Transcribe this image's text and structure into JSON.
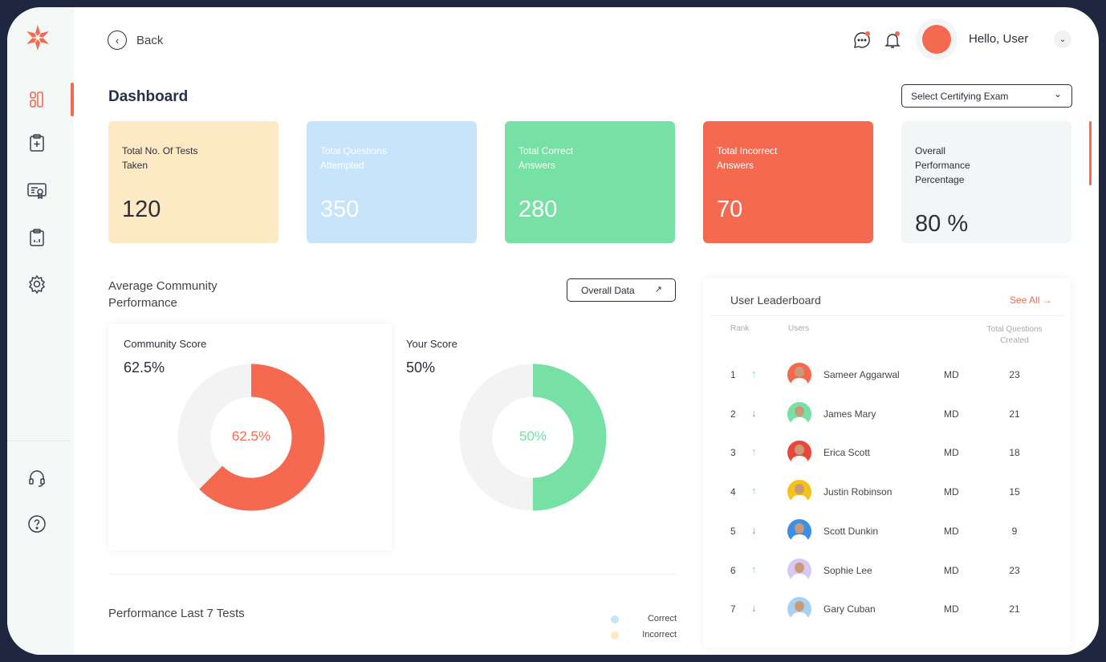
{
  "header": {
    "back_label": "Back",
    "greeting": "Hello, User"
  },
  "page": {
    "title": "Dashboard",
    "exam_select": "Select Certifying Exam"
  },
  "stats": [
    {
      "label": "Total No. Of Tests Taken",
      "value": "120",
      "bg": "#fde9c4",
      "fg": "#2b2f3a"
    },
    {
      "label": "Total Questions Attempted",
      "value": "350",
      "bg": "#c7e4fb",
      "fg": "#ffffff"
    },
    {
      "label": "Total Correct Answers",
      "value": "280",
      "bg": "#77e0a4",
      "fg": "#ffffff"
    },
    {
      "label": "Total Incorrect Answers",
      "value": "70",
      "bg": "#f4694f",
      "fg": "#ffffff"
    },
    {
      "label": "Overall Performance Percentage",
      "value": "80 %",
      "bg": "#f3f6f6",
      "fg": "#2b2f3a"
    }
  ],
  "community": {
    "title": "Average Community Performance",
    "overall_button": "Overall Data",
    "community_score": {
      "label": "Community Score",
      "value": "62.5%",
      "fraction": 0.625,
      "color": "#f4694f"
    },
    "your_score": {
      "label": "Your Score",
      "value": "50%",
      "fraction": 0.5,
      "color": "#77e0a4"
    }
  },
  "performance": {
    "title": "Performance Last 7 Tests",
    "legend": [
      {
        "label": "Correct",
        "color": "#c7e4fb"
      },
      {
        "label": "Incorrect",
        "color": "#fde9c4"
      }
    ]
  },
  "leaderboard": {
    "title": "User Leaderboard",
    "see_all": "See All",
    "headers": {
      "rank": "Rank",
      "users": "Users",
      "total": "Total Questions Created"
    },
    "rows": [
      {
        "rank": "1",
        "trend": "up",
        "name": "Sameer Aggarwal",
        "degree": "MD",
        "total": "23",
        "avatar": "#f4694f"
      },
      {
        "rank": "2",
        "trend": "down",
        "name": "James Mary",
        "degree": "MD",
        "total": "21",
        "avatar": "#77e0a4"
      },
      {
        "rank": "3",
        "trend": "up",
        "name": "Erica Scott",
        "degree": "MD",
        "total": "18",
        "avatar": "#e8473b"
      },
      {
        "rank": "4",
        "trend": "up",
        "name": "Justin Robinson",
        "degree": "MD",
        "total": "15",
        "avatar": "#f5c21b"
      },
      {
        "rank": "5",
        "trend": "down",
        "name": "Scott Dunkin",
        "degree": "MD",
        "total": "9",
        "avatar": "#3b8fe8"
      },
      {
        "rank": "6",
        "trend": "up",
        "name": "Sophie Lee",
        "degree": "MD",
        "total": "23",
        "avatar": "#d9c8f2"
      },
      {
        "rank": "7",
        "trend": "down",
        "name": "Gary Cuban",
        "degree": "MD",
        "total": "21",
        "avatar": "#a9d2f2"
      }
    ]
  }
}
